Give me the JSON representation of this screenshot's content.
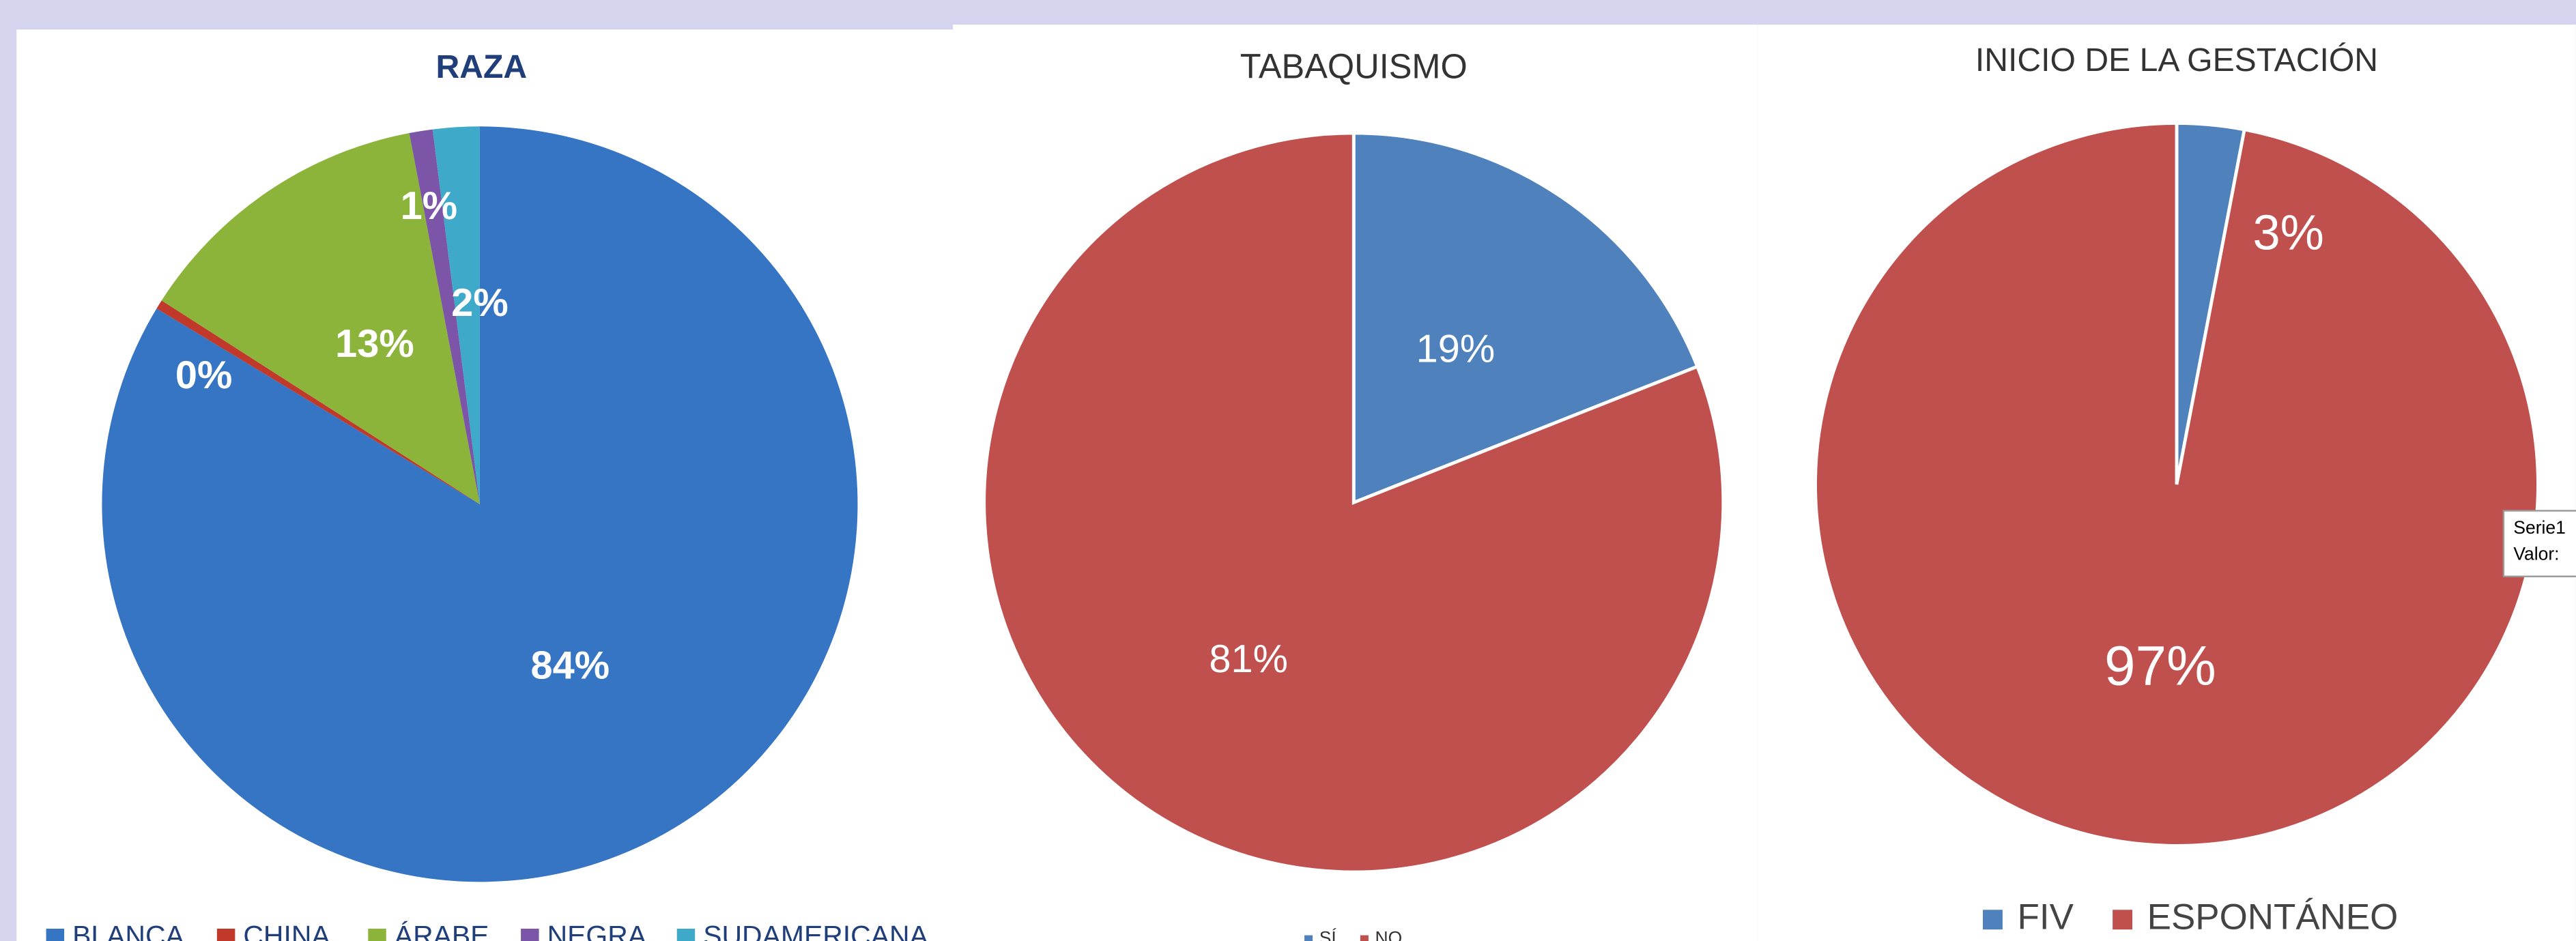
{
  "chart_data": [
    {
      "type": "pie",
      "title": "RAZA",
      "categories": [
        "BLANCA",
        "CHINA",
        "ÁRABE",
        "NEGRA",
        "SUDAMERICANA"
      ],
      "values": [
        84,
        0.4,
        13,
        1,
        2
      ],
      "value_labels": [
        "84%",
        "0%",
        "13%",
        "1%",
        "2%"
      ],
      "colors": [
        "#3674c4",
        "#c0392b",
        "#8cb43a",
        "#7c54a8",
        "#3fa9c9"
      ]
    },
    {
      "type": "pie",
      "title": "TABAQUISMO",
      "categories": [
        "SÍ",
        "NO"
      ],
      "values": [
        19,
        81
      ],
      "value_labels": [
        "19%",
        "81%"
      ],
      "colors": [
        "#4f81bd",
        "#c0504d"
      ]
    },
    {
      "type": "pie",
      "title": "INICIO DE LA GESTACIÓN",
      "categories": [
        "FIV",
        "ESPONTÁNEO"
      ],
      "values": [
        3,
        97
      ],
      "value_labels": [
        "3%",
        "97%"
      ],
      "colors": [
        "#4f81bd",
        "#c0504d"
      ]
    }
  ],
  "tooltip": {
    "lines": [
      "Serie1",
      "Valor:"
    ]
  }
}
